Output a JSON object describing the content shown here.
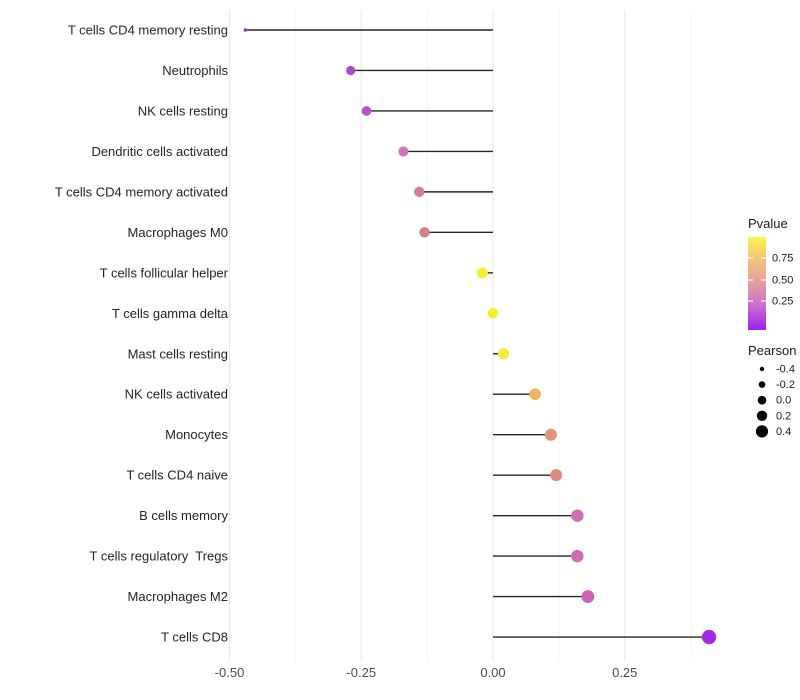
{
  "chart_data": {
    "type": "scatter",
    "subtype": "lollipop",
    "title": "",
    "xlabel": "",
    "ylabel": "",
    "xlim": [
      -0.514,
      0.454
    ],
    "grid": "vertical-only",
    "x_major_ticks": [
      -0.5,
      -0.25,
      0.0,
      0.25
    ],
    "x_tick_labels": [
      "-0.50",
      "-0.25",
      "0.00",
      "0.25"
    ],
    "x_minor_ticks": [
      -0.375,
      -0.125,
      0.125,
      0.375
    ],
    "baseline_x": 0.0,
    "categories": [
      "T cells CD4 memory resting",
      "Neutrophils",
      "NK cells resting",
      "Dendritic cells activated",
      "T cells CD4 memory activated",
      "Macrophages M0",
      "T cells follicular helper",
      "T cells gamma delta",
      "Mast cells resting",
      "NK cells activated",
      "Monocytes",
      "T cells CD4 naive",
      "B cells memory",
      "T cells regulatory  Tregs",
      "Macrophages M2",
      "T cells CD8"
    ],
    "series": [
      {
        "name": "Pearson",
        "values": [
          -0.47,
          -0.27,
          -0.24,
          -0.17,
          -0.14,
          -0.13,
          -0.02,
          0.0,
          0.02,
          0.08,
          0.11,
          0.12,
          0.16,
          0.16,
          0.18,
          0.41
        ]
      }
    ],
    "points": [
      {
        "label": "T cells CD4 memory resting",
        "pearson": -0.47,
        "dot_color": "#9232d8",
        "dot_radius": 1.8
      },
      {
        "label": "Neutrophils",
        "pearson": -0.27,
        "dot_color": "#b348cc",
        "dot_radius": 4.6
      },
      {
        "label": "NK cells resting",
        "pearson": -0.24,
        "dot_color": "#b951c7",
        "dot_radius": 4.8
      },
      {
        "label": "Dendritic cells activated",
        "pearson": -0.17,
        "dot_color": "#d073bd",
        "dot_radius": 5.0
      },
      {
        "label": "T cells CD4 memory activated",
        "pearson": -0.14,
        "dot_color": "#d57f8e",
        "dot_radius": 5.2
      },
      {
        "label": "Macrophages M0",
        "pearson": -0.13,
        "dot_color": "#d57f8a",
        "dot_radius": 5.2
      },
      {
        "label": "T cells follicular helper",
        "pearson": -0.02,
        "dot_color": "#f6ed36",
        "dot_radius": 5.5
      },
      {
        "label": "T cells gamma delta",
        "pearson": 0.0,
        "dot_color": "#f8ef2c",
        "dot_radius": 5.3
      },
      {
        "label": "Mast cells resting",
        "pearson": 0.02,
        "dot_color": "#f6ea3e",
        "dot_radius": 5.6
      },
      {
        "label": "NK cells activated",
        "pearson": 0.08,
        "dot_color": "#eeb766",
        "dot_radius": 5.8
      },
      {
        "label": "Monocytes",
        "pearson": 0.11,
        "dot_color": "#e39478",
        "dot_radius": 6.0
      },
      {
        "label": "T cells CD4 naive",
        "pearson": 0.12,
        "dot_color": "#dd8b80",
        "dot_radius": 6.0
      },
      {
        "label": "B cells memory",
        "pearson": 0.16,
        "dot_color": "#d06cb4",
        "dot_radius": 6.2
      },
      {
        "label": "T cells regulatory  Tregs",
        "pearson": 0.16,
        "dot_color": "#d06cb4",
        "dot_radius": 6.2
      },
      {
        "label": "Macrophages M2",
        "pearson": 0.18,
        "dot_color": "#cd62b9",
        "dot_radius": 6.4
      },
      {
        "label": "T cells CD8",
        "pearson": 0.41,
        "dot_color": "#a32ae4",
        "dot_radius": 7.2
      }
    ],
    "legend_position": "right",
    "legends": {
      "pvalue": {
        "title": "Pvalue",
        "gradient_stops": [
          {
            "offset": 0.0,
            "color": "#a01ef0"
          },
          {
            "offset": 0.25,
            "color": "#c76bd2"
          },
          {
            "offset": 0.52,
            "color": "#e6a09e"
          },
          {
            "offset": 0.78,
            "color": "#f4c677"
          },
          {
            "offset": 1.0,
            "color": "#faf64c"
          }
        ],
        "tick_labels": [
          "0.75",
          "0.50",
          "0.25"
        ]
      },
      "pearson": {
        "title": "Pearson",
        "dot_color": "#000000",
        "entries": [
          {
            "label": "-0.4",
            "radius": 2.2
          },
          {
            "label": "-0.2",
            "radius": 3.3
          },
          {
            "label": "0.0",
            "radius": 4.3
          },
          {
            "label": "0.2",
            "radius": 5.2
          },
          {
            "label": "0.4",
            "radius": 6.1
          }
        ]
      }
    },
    "colors": {
      "segment": "#262626",
      "grid_major": "#e9e9e9",
      "grid_minor": "#f4f4f4",
      "category_text": "#242424",
      "tick_text": "#4d4d4d",
      "legend_text": "#1a1a1a",
      "background": "#ffffff"
    }
  }
}
